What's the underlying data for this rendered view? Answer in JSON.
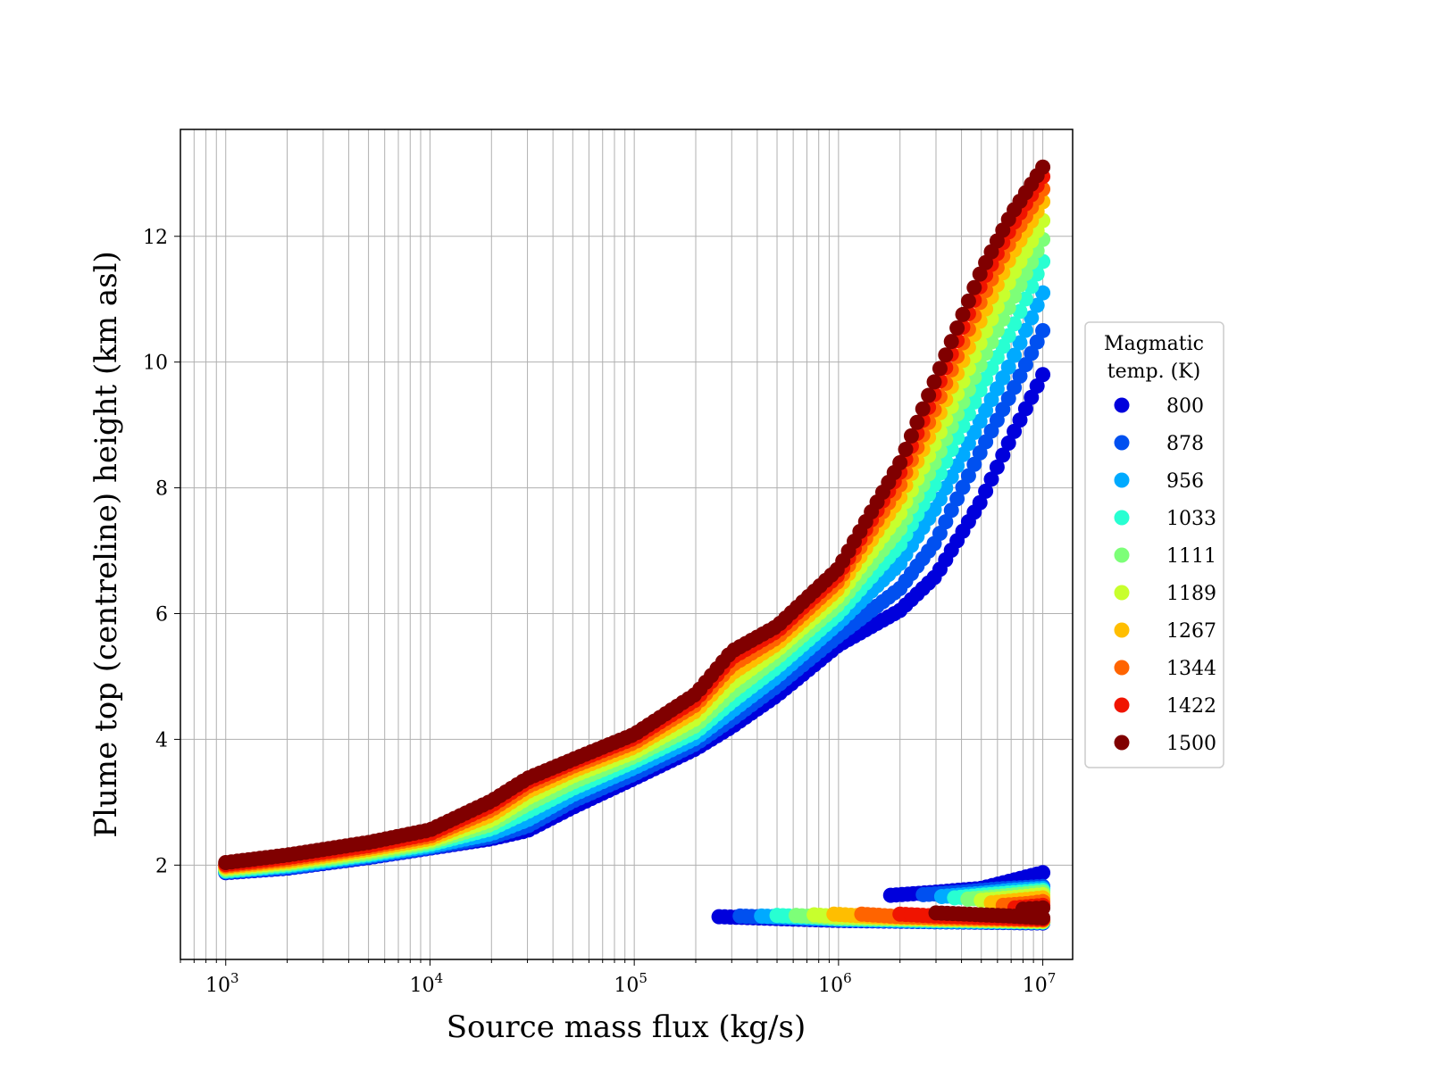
{
  "chart_data": {
    "type": "scatter",
    "xlabel": "Source mass flux (kg/s)",
    "ylabel": "Plume top (centreline) height (km asl)",
    "xscale": "log",
    "xlim": [
      600,
      14000000
    ],
    "ylim": [
      0.5,
      13.7
    ],
    "x_ticks": [
      1000,
      10000,
      100000,
      1000000,
      10000000
    ],
    "x_tick_labels": [
      {
        "base": "10",
        "exp": "3"
      },
      {
        "base": "10",
        "exp": "4"
      },
      {
        "base": "10",
        "exp": "5"
      },
      {
        "base": "10",
        "exp": "6"
      },
      {
        "base": "10",
        "exp": "7"
      }
    ],
    "y_ticks": [
      2,
      4,
      6,
      8,
      10,
      12
    ],
    "y_tick_labels": [
      "2",
      "4",
      "6",
      "8",
      "10",
      "12"
    ],
    "grid": true,
    "legend": {
      "title_line1": "Magmatic",
      "title_line2": "temp. (K)",
      "placement": "outside-right"
    },
    "series": [
      {
        "name": "800",
        "color": "#0000dc",
        "main": [
          [
            1000,
            1.88
          ],
          [
            2000,
            1.95
          ],
          [
            5000,
            2.12
          ],
          [
            10000,
            2.27
          ],
          [
            20000,
            2.42
          ],
          [
            30000,
            2.55
          ],
          [
            50000,
            2.92
          ],
          [
            100000,
            3.38
          ],
          [
            200000,
            3.85
          ],
          [
            300000,
            4.2
          ],
          [
            500000,
            4.7
          ],
          [
            1000000,
            5.5
          ],
          [
            2000000,
            6.05
          ],
          [
            3000000,
            6.6
          ],
          [
            5000000,
            7.8
          ],
          [
            7000000,
            8.8
          ],
          [
            10000000,
            9.8
          ]
        ],
        "lower": [
          [
            260000,
            1.18
          ],
          [
            500000,
            1.15
          ],
          [
            1000000,
            1.12
          ],
          [
            3000000,
            1.1
          ],
          [
            10000000,
            1.08
          ]
        ],
        "upper": [
          [
            1800000,
            1.52
          ],
          [
            3000000,
            1.57
          ],
          [
            5000000,
            1.63
          ],
          [
            10000000,
            1.88
          ]
        ]
      },
      {
        "name": "878",
        "color": "#0050f0",
        "main": [
          [
            1000,
            1.89
          ],
          [
            2000,
            1.96
          ],
          [
            5000,
            2.13
          ],
          [
            10000,
            2.28
          ],
          [
            20000,
            2.45
          ],
          [
            30000,
            2.62
          ],
          [
            50000,
            3.02
          ],
          [
            100000,
            3.45
          ],
          [
            200000,
            3.93
          ],
          [
            300000,
            4.32
          ],
          [
            500000,
            4.85
          ],
          [
            1000000,
            5.65
          ],
          [
            2000000,
            6.4
          ],
          [
            3000000,
            7.15
          ],
          [
            5000000,
            8.6
          ],
          [
            7000000,
            9.5
          ],
          [
            10000000,
            10.5
          ]
        ],
        "lower": [
          [
            330000,
            1.19
          ],
          [
            600000,
            1.16
          ],
          [
            1000000,
            1.13
          ],
          [
            3000000,
            1.1
          ],
          [
            10000000,
            1.09
          ]
        ],
        "upper": [
          [
            2600000,
            1.53
          ],
          [
            4000000,
            1.57
          ],
          [
            6000000,
            1.62
          ],
          [
            10000000,
            1.66
          ]
        ]
      },
      {
        "name": "956",
        "color": "#00aaff",
        "main": [
          [
            1000,
            1.9
          ],
          [
            2000,
            1.98
          ],
          [
            5000,
            2.15
          ],
          [
            10000,
            2.3
          ],
          [
            20000,
            2.5
          ],
          [
            30000,
            2.72
          ],
          [
            50000,
            3.12
          ],
          [
            100000,
            3.55
          ],
          [
            200000,
            4.02
          ],
          [
            300000,
            4.45
          ],
          [
            500000,
            5.0
          ],
          [
            1000000,
            5.85
          ],
          [
            2000000,
            6.8
          ],
          [
            3000000,
            7.7
          ],
          [
            5000000,
            9.1
          ],
          [
            7000000,
            10.0
          ],
          [
            10000000,
            11.1
          ]
        ],
        "lower": [
          [
            420000,
            1.19
          ],
          [
            700000,
            1.16
          ],
          [
            1000000,
            1.14
          ],
          [
            3000000,
            1.11
          ],
          [
            10000000,
            1.09
          ]
        ],
        "upper": [
          [
            3200000,
            1.5
          ],
          [
            5000000,
            1.55
          ],
          [
            7000000,
            1.6
          ],
          [
            10000000,
            1.63
          ]
        ]
      },
      {
        "name": "1033",
        "color": "#28ffd2",
        "main": [
          [
            1000,
            1.91
          ],
          [
            2000,
            2.0
          ],
          [
            5000,
            2.17
          ],
          [
            10000,
            2.33
          ],
          [
            20000,
            2.58
          ],
          [
            30000,
            2.85
          ],
          [
            50000,
            3.22
          ],
          [
            100000,
            3.65
          ],
          [
            200000,
            4.12
          ],
          [
            300000,
            4.6
          ],
          [
            500000,
            5.15
          ],
          [
            1000000,
            6.0
          ],
          [
            2000000,
            7.1
          ],
          [
            3000000,
            8.1
          ],
          [
            5000000,
            9.6
          ],
          [
            7000000,
            10.5
          ],
          [
            10000000,
            11.6
          ]
        ],
        "lower": [
          [
            500000,
            1.2
          ],
          [
            800000,
            1.17
          ],
          [
            1000000,
            1.15
          ],
          [
            3000000,
            1.12
          ],
          [
            10000000,
            1.1
          ]
        ],
        "upper": [
          [
            3700000,
            1.48
          ],
          [
            5000000,
            1.52
          ],
          [
            7000000,
            1.56
          ],
          [
            10000000,
            1.6
          ]
        ]
      },
      {
        "name": "1111",
        "color": "#7dff78",
        "main": [
          [
            1000,
            1.93
          ],
          [
            2000,
            2.02
          ],
          [
            5000,
            2.19
          ],
          [
            10000,
            2.36
          ],
          [
            20000,
            2.65
          ],
          [
            30000,
            2.97
          ],
          [
            50000,
            3.32
          ],
          [
            100000,
            3.73
          ],
          [
            200000,
            4.22
          ],
          [
            300000,
            4.75
          ],
          [
            500000,
            5.3
          ],
          [
            1000000,
            6.15
          ],
          [
            2000000,
            7.35
          ],
          [
            3000000,
            8.45
          ],
          [
            5000000,
            10.0
          ],
          [
            7000000,
            10.95
          ],
          [
            10000000,
            11.95
          ]
        ],
        "lower": [
          [
            620000,
            1.2
          ],
          [
            1000000,
            1.16
          ],
          [
            3000000,
            1.13
          ],
          [
            10000000,
            1.1
          ]
        ],
        "upper": [
          [
            4300000,
            1.46
          ],
          [
            6000000,
            1.5
          ],
          [
            10000000,
            1.57
          ]
        ]
      },
      {
        "name": "1189",
        "color": "#c8ff2d",
        "main": [
          [
            1000,
            1.95
          ],
          [
            2000,
            2.04
          ],
          [
            5000,
            2.22
          ],
          [
            10000,
            2.39
          ],
          [
            20000,
            2.72
          ],
          [
            30000,
            3.07
          ],
          [
            50000,
            3.42
          ],
          [
            100000,
            3.8
          ],
          [
            200000,
            4.33
          ],
          [
            300000,
            4.9
          ],
          [
            500000,
            5.42
          ],
          [
            1000000,
            6.28
          ],
          [
            2000000,
            7.6
          ],
          [
            3000000,
            8.75
          ],
          [
            5000000,
            10.35
          ],
          [
            7000000,
            11.35
          ],
          [
            10000000,
            12.25
          ]
        ],
        "lower": [
          [
            760000,
            1.21
          ],
          [
            1000000,
            1.18
          ],
          [
            3000000,
            1.14
          ],
          [
            10000000,
            1.11
          ]
        ],
        "upper": [
          [
            5000000,
            1.44
          ],
          [
            7000000,
            1.48
          ],
          [
            10000000,
            1.53
          ]
        ]
      },
      {
        "name": "1267",
        "color": "#ffbe00",
        "main": [
          [
            1000,
            1.97
          ],
          [
            2000,
            2.06
          ],
          [
            5000,
            2.25
          ],
          [
            10000,
            2.42
          ],
          [
            20000,
            2.8
          ],
          [
            30000,
            3.17
          ],
          [
            50000,
            3.5
          ],
          [
            100000,
            3.88
          ],
          [
            200000,
            4.45
          ],
          [
            300000,
            5.05
          ],
          [
            500000,
            5.52
          ],
          [
            1000000,
            6.4
          ],
          [
            2000000,
            7.85
          ],
          [
            3000000,
            9.05
          ],
          [
            5000000,
            10.7
          ],
          [
            7000000,
            11.7
          ],
          [
            10000000,
            12.55
          ]
        ],
        "lower": [
          [
            950000,
            1.22
          ],
          [
            1500000,
            1.18
          ],
          [
            3000000,
            1.15
          ],
          [
            10000000,
            1.12
          ]
        ],
        "upper": [
          [
            5600000,
            1.4
          ],
          [
            7500000,
            1.44
          ],
          [
            10000000,
            1.48
          ]
        ]
      },
      {
        "name": "1344",
        "color": "#ff6400",
        "main": [
          [
            1000,
            1.99
          ],
          [
            2000,
            2.09
          ],
          [
            5000,
            2.28
          ],
          [
            10000,
            2.46
          ],
          [
            20000,
            2.88
          ],
          [
            30000,
            3.25
          ],
          [
            50000,
            3.57
          ],
          [
            100000,
            3.95
          ],
          [
            200000,
            4.55
          ],
          [
            300000,
            5.18
          ],
          [
            500000,
            5.62
          ],
          [
            1000000,
            6.52
          ],
          [
            2000000,
            8.05
          ],
          [
            3000000,
            9.3
          ],
          [
            5000000,
            11.0
          ],
          [
            7000000,
            11.95
          ],
          [
            10000000,
            12.75
          ]
        ],
        "lower": [
          [
            1300000,
            1.22
          ],
          [
            2000000,
            1.18
          ],
          [
            4000000,
            1.16
          ],
          [
            10000000,
            1.13
          ]
        ],
        "upper": [
          [
            6400000,
            1.36
          ],
          [
            8500000,
            1.39
          ],
          [
            10000000,
            1.42
          ]
        ]
      },
      {
        "name": "1422",
        "color": "#f01400",
        "main": [
          [
            1000,
            2.01
          ],
          [
            2000,
            2.12
          ],
          [
            5000,
            2.31
          ],
          [
            10000,
            2.5
          ],
          [
            20000,
            2.95
          ],
          [
            30000,
            3.32
          ],
          [
            50000,
            3.63
          ],
          [
            100000,
            4.02
          ],
          [
            200000,
            4.63
          ],
          [
            300000,
            5.3
          ],
          [
            500000,
            5.72
          ],
          [
            1000000,
            6.62
          ],
          [
            2000000,
            8.25
          ],
          [
            3000000,
            9.55
          ],
          [
            5000000,
            11.25
          ],
          [
            7000000,
            12.15
          ],
          [
            10000000,
            12.95
          ]
        ],
        "lower": [
          [
            2000000,
            1.22
          ],
          [
            3000000,
            1.19
          ],
          [
            5000000,
            1.17
          ],
          [
            10000000,
            1.14
          ]
        ],
        "upper": [
          [
            7300000,
            1.32
          ],
          [
            10000000,
            1.36
          ]
        ]
      },
      {
        "name": "1500",
        "color": "#800000",
        "main": [
          [
            1000,
            2.04
          ],
          [
            2000,
            2.16
          ],
          [
            5000,
            2.36
          ],
          [
            10000,
            2.56
          ],
          [
            20000,
            3.02
          ],
          [
            30000,
            3.38
          ],
          [
            50000,
            3.68
          ],
          [
            100000,
            4.08
          ],
          [
            200000,
            4.72
          ],
          [
            300000,
            5.4
          ],
          [
            500000,
            5.8
          ],
          [
            1000000,
            6.72
          ],
          [
            2000000,
            8.4
          ],
          [
            3000000,
            9.75
          ],
          [
            5000000,
            11.45
          ],
          [
            7000000,
            12.35
          ],
          [
            10000000,
            13.1
          ]
        ],
        "lower": [
          [
            3000000,
            1.24
          ],
          [
            5000000,
            1.21
          ],
          [
            7000000,
            1.19
          ],
          [
            10000000,
            1.16
          ]
        ],
        "upper": [
          [
            8000000,
            1.3
          ],
          [
            10000000,
            1.32
          ]
        ]
      }
    ]
  }
}
